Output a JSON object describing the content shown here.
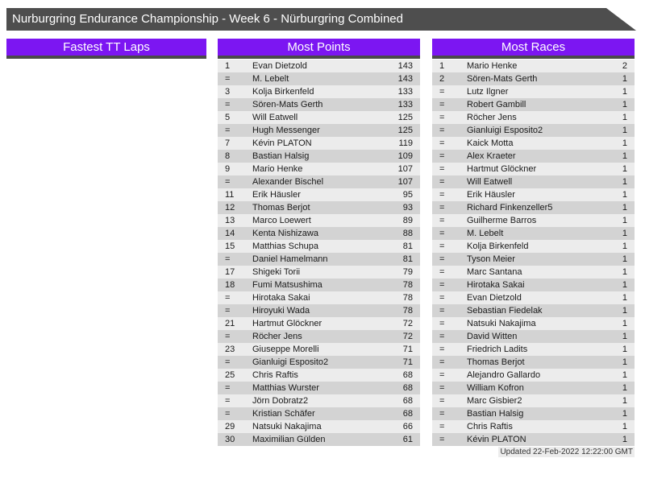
{
  "title": "Nurburgring Endurance Championship - Week 6 - Nürburgring Combined",
  "updated": "Updated 22-Feb-2022 12:22:00 GMT",
  "colors": {
    "titlebar_bg": "#4e4e4e",
    "header_bg": "#7c16f2",
    "header_border": "#4a4a4a",
    "row_odd": "#ececec",
    "row_even": "#d3d3d3"
  },
  "tables": [
    {
      "id": "fastest-tt-laps",
      "header": "Fastest TT Laps",
      "rows": []
    },
    {
      "id": "most-points",
      "header": "Most Points",
      "rows": [
        [
          "1",
          "Evan Dietzold",
          "143"
        ],
        [
          "=",
          "M. Lebelt",
          "143"
        ],
        [
          "3",
          "Kolja Birkenfeld",
          "133"
        ],
        [
          "=",
          "Sören-Mats Gerth",
          "133"
        ],
        [
          "5",
          "Will Eatwell",
          "125"
        ],
        [
          "=",
          "Hugh Messenger",
          "125"
        ],
        [
          "7",
          "Kévin PLATON",
          "119"
        ],
        [
          "8",
          "Bastian Halsig",
          "109"
        ],
        [
          "9",
          "Mario Henke",
          "107"
        ],
        [
          "=",
          "Alexander Bischel",
          "107"
        ],
        [
          "11",
          "Erik Häusler",
          "95"
        ],
        [
          "12",
          "Thomas Berjot",
          "93"
        ],
        [
          "13",
          "Marco Loewert",
          "89"
        ],
        [
          "14",
          "Kenta Nishizawa",
          "88"
        ],
        [
          "15",
          "Matthias Schupa",
          "81"
        ],
        [
          "=",
          "Daniel Hamelmann",
          "81"
        ],
        [
          "17",
          "Shigeki Torii",
          "79"
        ],
        [
          "18",
          "Fumi Matsushima",
          "78"
        ],
        [
          "=",
          "Hirotaka Sakai",
          "78"
        ],
        [
          "=",
          "Hiroyuki Wada",
          "78"
        ],
        [
          "21",
          "Hartmut Glöckner",
          "72"
        ],
        [
          "=",
          "Röcher Jens",
          "72"
        ],
        [
          "23",
          "Giuseppe Morelli",
          "71"
        ],
        [
          "=",
          "Gianluigi Esposito2",
          "71"
        ],
        [
          "25",
          "Chris Raftis",
          "68"
        ],
        [
          "=",
          "Matthias Wurster",
          "68"
        ],
        [
          "=",
          "Jörn Dobratz2",
          "68"
        ],
        [
          "=",
          "Kristian Schäfer",
          "68"
        ],
        [
          "29",
          "Natsuki Nakajima",
          "66"
        ],
        [
          "30",
          "Maximilian Gülden",
          "61"
        ]
      ]
    },
    {
      "id": "most-races",
      "header": "Most Races",
      "rows": [
        [
          "1",
          "Mario Henke",
          "2"
        ],
        [
          "2",
          "Sören-Mats Gerth",
          "1"
        ],
        [
          "=",
          "Lutz Ilgner",
          "1"
        ],
        [
          "=",
          "Robert Gambill",
          "1"
        ],
        [
          "=",
          "Röcher Jens",
          "1"
        ],
        [
          "=",
          "Gianluigi Esposito2",
          "1"
        ],
        [
          "=",
          "Kaick Motta",
          "1"
        ],
        [
          "=",
          "Alex Kraeter",
          "1"
        ],
        [
          "=",
          "Hartmut Glöckner",
          "1"
        ],
        [
          "=",
          "Will Eatwell",
          "1"
        ],
        [
          "=",
          "Erik Häusler",
          "1"
        ],
        [
          "=",
          "Richard Finkenzeller5",
          "1"
        ],
        [
          "=",
          "Guilherme Barros",
          "1"
        ],
        [
          "=",
          "M. Lebelt",
          "1"
        ],
        [
          "=",
          "Kolja Birkenfeld",
          "1"
        ],
        [
          "=",
          "Tyson Meier",
          "1"
        ],
        [
          "=",
          "Marc Santana",
          "1"
        ],
        [
          "=",
          "Hirotaka Sakai",
          "1"
        ],
        [
          "=",
          "Evan Dietzold",
          "1"
        ],
        [
          "=",
          "Sebastian Fiedelak",
          "1"
        ],
        [
          "=",
          "Natsuki Nakajima",
          "1"
        ],
        [
          "=",
          "David Witten",
          "1"
        ],
        [
          "=",
          "Friedrich Ladits",
          "1"
        ],
        [
          "=",
          "Thomas Berjot",
          "1"
        ],
        [
          "=",
          "Alejandro Gallardo",
          "1"
        ],
        [
          "=",
          "William Kofron",
          "1"
        ],
        [
          "=",
          "Marc Gisbier2",
          "1"
        ],
        [
          "=",
          "Bastian Halsig",
          "1"
        ],
        [
          "=",
          "Chris Raftis",
          "1"
        ],
        [
          "=",
          "Kévin PLATON",
          "1"
        ]
      ]
    }
  ]
}
